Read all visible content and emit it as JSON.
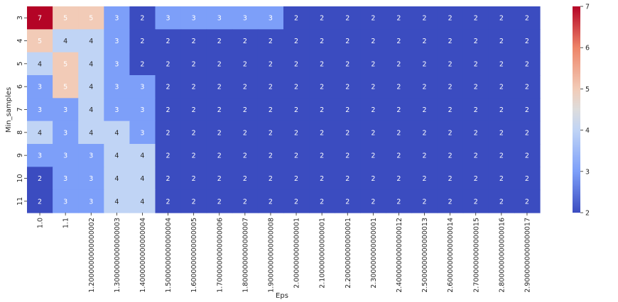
{
  "chart_data": {
    "type": "heatmap",
    "title": "",
    "xlabel": "Eps",
    "ylabel": "Min_samples",
    "x_categories": [
      "1.0",
      "1.1",
      "1.2000000000000002",
      "1.3000000000000003",
      "1.4000000000000004",
      "1.5000000000000004",
      "1.6000000000000005",
      "1.7000000000000006",
      "1.8000000000000007",
      "1.9000000000000008",
      "2.000000000000001",
      "2.100000000000001",
      "2.200000000000001",
      "2.300000000000001",
      "2.4000000000000012",
      "2.5000000000000013",
      "2.6000000000000014",
      "2.7000000000000015",
      "2.8000000000000016",
      "2.9000000000000017"
    ],
    "y_categories": [
      "3",
      "4",
      "5",
      "6",
      "7",
      "8",
      "9",
      "10",
      "11"
    ],
    "values": [
      [
        7,
        5,
        5,
        3,
        2,
        3,
        3,
        3,
        3,
        3,
        2,
        2,
        2,
        2,
        2,
        2,
        2,
        2,
        2,
        2
      ],
      [
        5,
        4,
        4,
        3,
        2,
        2,
        2,
        2,
        2,
        2,
        2,
        2,
        2,
        2,
        2,
        2,
        2,
        2,
        2,
        2
      ],
      [
        4,
        5,
        4,
        3,
        2,
        2,
        2,
        2,
        2,
        2,
        2,
        2,
        2,
        2,
        2,
        2,
        2,
        2,
        2,
        2
      ],
      [
        3,
        5,
        4,
        3,
        3,
        2,
        2,
        2,
        2,
        2,
        2,
        2,
        2,
        2,
        2,
        2,
        2,
        2,
        2,
        2
      ],
      [
        3,
        3,
        4,
        3,
        3,
        2,
        2,
        2,
        2,
        2,
        2,
        2,
        2,
        2,
        2,
        2,
        2,
        2,
        2,
        2
      ],
      [
        4,
        3,
        4,
        4,
        3,
        2,
        2,
        2,
        2,
        2,
        2,
        2,
        2,
        2,
        2,
        2,
        2,
        2,
        2,
        2
      ],
      [
        3,
        3,
        3,
        4,
        4,
        2,
        2,
        2,
        2,
        2,
        2,
        2,
        2,
        2,
        2,
        2,
        2,
        2,
        2,
        2
      ],
      [
        2,
        3,
        3,
        4,
        4,
        2,
        2,
        2,
        2,
        2,
        2,
        2,
        2,
        2,
        2,
        2,
        2,
        2,
        2,
        2
      ],
      [
        2,
        3,
        3,
        4,
        4,
        2,
        2,
        2,
        2,
        2,
        2,
        2,
        2,
        2,
        2,
        2,
        2,
        2,
        2,
        2
      ]
    ],
    "colormap": "coolwarm",
    "vmin": 2,
    "vmax": 7,
    "colorbar_ticks": [
      "2",
      "3",
      "4",
      "5",
      "6",
      "7"
    ],
    "annotations": true,
    "colors": {
      "2": "#3b4cc0",
      "3": "#7d9ff9",
      "4": "#c0d4f5",
      "5": "#f2cbb7",
      "6": "#ee8468",
      "7": "#b40426"
    }
  }
}
